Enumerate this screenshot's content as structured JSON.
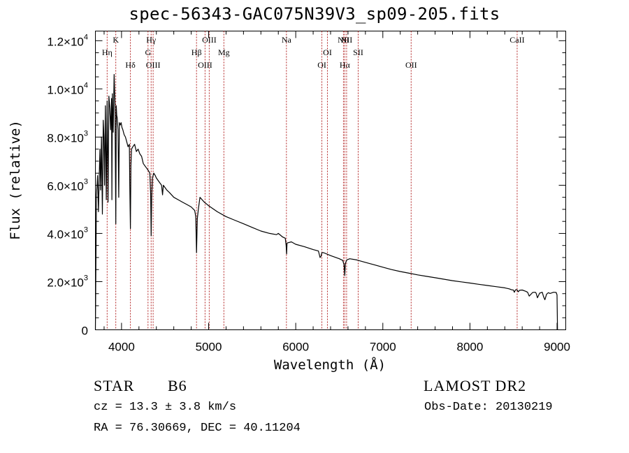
{
  "title": "spec-56343-GAC075N39V3_sp09-205.fits",
  "info": {
    "object_class": "STAR",
    "subclass": "B6",
    "survey": "LAMOST DR2",
    "cz": "cz = 13.3 ± 3.8 km/s",
    "obs_date": "Obs-Date: 20130219",
    "coords": "RA =  76.30669, DEC =  40.11204"
  },
  "chart_data": {
    "type": "line",
    "title": "spec-56343-GAC075N39V3_sp09-205.fits",
    "xlabel": "Wavelength (Å)",
    "ylabel": "Flux (relative)",
    "xlim": [
      3700,
      9100
    ],
    "ylim": [
      0,
      12400
    ],
    "grid": false,
    "line_color": "#000000",
    "marker_color": "#b22222",
    "x_ticks": [
      {
        "value": 4000,
        "label": "4000"
      },
      {
        "value": 5000,
        "label": "5000"
      },
      {
        "value": 6000,
        "label": "6000"
      },
      {
        "value": 7000,
        "label": "7000"
      },
      {
        "value": 8000,
        "label": "8000"
      },
      {
        "value": 9000,
        "label": "9000"
      }
    ],
    "y_ticks": [
      {
        "value": 0,
        "label": "0",
        "exp": ""
      },
      {
        "value": 2000,
        "label": "2.0×10",
        "exp": "3"
      },
      {
        "value": 4000,
        "label": "4.0×10",
        "exp": "3"
      },
      {
        "value": 6000,
        "label": "6.0×10",
        "exp": "3"
      },
      {
        "value": 8000,
        "label": "8.0×10",
        "exp": "3"
      },
      {
        "value": 10000,
        "label": "1.0×10",
        "exp": "4"
      },
      {
        "value": 12000,
        "label": "1.2×10",
        "exp": "4"
      }
    ],
    "line_markers": [
      {
        "x": 3835,
        "label": "Hη",
        "row": 2
      },
      {
        "x": 3934,
        "label": "K",
        "row": 1
      },
      {
        "x": 4102,
        "label": "Hδ",
        "row": 3
      },
      {
        "x": 4304,
        "label": "G",
        "row": 2
      },
      {
        "x": 4340,
        "label": "Hγ",
        "row": 1
      },
      {
        "x": 4363,
        "label": "OIII",
        "row": 3
      },
      {
        "x": 4861,
        "label": "Hβ",
        "row": 2
      },
      {
        "x": 4959,
        "label": "OIII",
        "row": 3
      },
      {
        "x": 5007,
        "label": "OIII",
        "row": 1
      },
      {
        "x": 5175,
        "label": "Mg",
        "row": 2
      },
      {
        "x": 5893,
        "label": "Na",
        "row": 1
      },
      {
        "x": 6300,
        "label": "OI",
        "row": 3
      },
      {
        "x": 6364,
        "label": "OI",
        "row": 2
      },
      {
        "x": 6548,
        "label": "NII",
        "row": 1
      },
      {
        "x": 6563,
        "label": "Hα",
        "row": 3
      },
      {
        "x": 6584,
        "label": "NII",
        "row": 1
      },
      {
        "x": 6717,
        "label": "SII",
        "row": 2
      },
      {
        "x": 7325,
        "label": "OII",
        "row": 3
      },
      {
        "x": 8542,
        "label": "CaII",
        "row": 1
      }
    ],
    "series": [
      {
        "x": [
          3700,
          3712,
          3725,
          3735,
          3745,
          3752,
          3760,
          3770,
          3780,
          3790,
          3798,
          3805,
          3815,
          3825,
          3835,
          3845,
          3855,
          3865,
          3875,
          3885,
          3889,
          3895,
          3905,
          3915,
          3925,
          3930,
          3934,
          3940,
          3945,
          3950,
          3960,
          3968,
          3975,
          3985,
          3995,
          4005,
          4015,
          4030,
          4045,
          4060,
          4075,
          4090,
          4095,
          4102,
          4108,
          4115,
          4130,
          4150,
          4170,
          4190,
          4210,
          4230,
          4250,
          4270,
          4290,
          4310,
          4325,
          4335,
          4340,
          4346,
          4355,
          4370,
          4388,
          4400,
          4420,
          4440,
          4460,
          4471,
          4480,
          4500,
          4520,
          4550,
          4600,
          4650,
          4700,
          4750,
          4800,
          4840,
          4852,
          4861,
          4870,
          4882,
          4900,
          4950,
          5000,
          5100,
          5200,
          5300,
          5400,
          5500,
          5600,
          5700,
          5780,
          5800,
          5850,
          5880,
          5890,
          5895,
          5900,
          5950,
          6000,
          6100,
          6200,
          6260,
          6280,
          6290,
          6300,
          6320,
          6400,
          6500,
          6540,
          6555,
          6563,
          6570,
          6585,
          6620,
          6700,
          6800,
          6900,
          7000,
          7100,
          7200,
          7300,
          7400,
          7500,
          7600,
          7700,
          7800,
          7900,
          8000,
          8100,
          8200,
          8300,
          8400,
          8450,
          8480,
          8498,
          8510,
          8520,
          8530,
          8542,
          8555,
          8570,
          8600,
          8640,
          8662,
          8680,
          8720,
          8750,
          8760,
          8775,
          8800,
          8830,
          8845,
          8860,
          8880,
          8900,
          8920,
          8960,
          8990,
          9000,
          9005
        ],
        "y": [
          0,
          5600,
          6400,
          4900,
          6500,
          7500,
          5800,
          8000,
          4800,
          8700,
          8000,
          6000,
          9300,
          5400,
          9500,
          5300,
          9700,
          9200,
          8300,
          9600,
          5400,
          9800,
          8200,
          10600,
          9400,
          6500,
          4400,
          9300,
          8900,
          8800,
          8300,
          5500,
          8600,
          8500,
          8600,
          8400,
          8300,
          8100,
          8000,
          7800,
          7600,
          7700,
          6000,
          4200,
          6800,
          7500,
          7600,
          7700,
          7400,
          7500,
          7300,
          7200,
          6900,
          6800,
          6700,
          6600,
          6500,
          5600,
          3900,
          5500,
          6300,
          6500,
          6400,
          6300,
          6200,
          6100,
          6000,
          5600,
          6000,
          5900,
          5800,
          5700,
          5500,
          5400,
          5300,
          5200,
          5100,
          4950,
          4700,
          3200,
          4600,
          5000,
          5500,
          5300,
          5150,
          4900,
          4700,
          4550,
          4400,
          4250,
          4100,
          4000,
          3950,
          4000,
          3850,
          3800,
          3500,
          3150,
          3600,
          3650,
          3550,
          3450,
          3330,
          3270,
          3000,
          3050,
          3200,
          3200,
          3080,
          2950,
          2880,
          2700,
          2250,
          2750,
          2900,
          2950,
          2900,
          2800,
          2700,
          2600,
          2500,
          2420,
          2350,
          2280,
          2220,
          2160,
          2100,
          2040,
          1990,
          1940,
          1890,
          1840,
          1790,
          1740,
          1700,
          1660,
          1650,
          1560,
          1640,
          1670,
          1650,
          1580,
          1640,
          1650,
          1600,
          1560,
          1400,
          1550,
          1560,
          1520,
          1330,
          1520,
          1560,
          1380,
          1250,
          1480,
          1540,
          1510,
          1560,
          1550,
          1450,
          0
        ]
      }
    ]
  }
}
